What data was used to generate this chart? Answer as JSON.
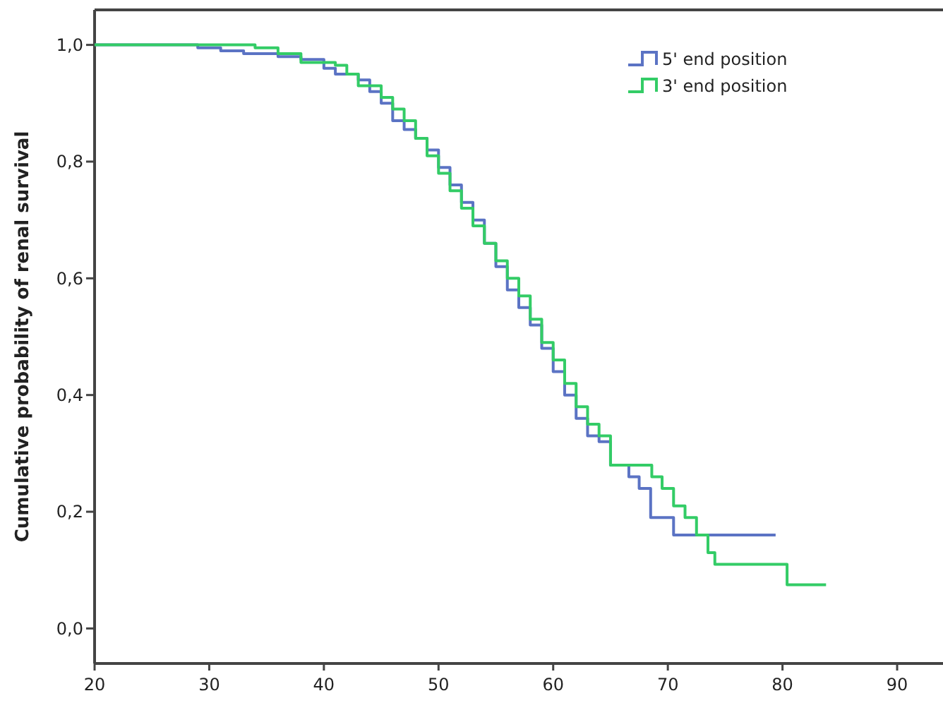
{
  "chart_data": {
    "type": "step",
    "ylabel": "Cumulative probability of renal survival",
    "xlim": [
      20,
      94
    ],
    "xticks": [
      20,
      30,
      40,
      50,
      60,
      70,
      80,
      90
    ],
    "ylim": [
      -0.06,
      1.06
    ],
    "yticks": [
      {
        "value": 0,
        "label": "0,0"
      },
      {
        "value": 0.2,
        "label": "0,2"
      },
      {
        "value": 0.4,
        "label": "0,4"
      },
      {
        "value": 0.6,
        "label": "0,6"
      },
      {
        "value": 0.8,
        "label": "0,8"
      },
      {
        "value": 1,
        "label": "1,0"
      }
    ],
    "grid": false,
    "legend": "top right",
    "marker": "none",
    "line_style": "solid",
    "series": [
      {
        "name": "5' end position",
        "color": "#5b73c4",
        "x": [
          20,
          29,
          31,
          33,
          36,
          38,
          40,
          41,
          43,
          44,
          45,
          46,
          47,
          48,
          49,
          50,
          51,
          52,
          53,
          54,
          55,
          56,
          57,
          58,
          59,
          60,
          61,
          62,
          63,
          64,
          65,
          66.6,
          67.5,
          68.5,
          70.5,
          79.4
        ],
        "values": [
          1,
          0.995,
          0.99,
          0.985,
          0.98,
          0.975,
          0.96,
          0.95,
          0.94,
          0.92,
          0.9,
          0.87,
          0.855,
          0.84,
          0.82,
          0.79,
          0.76,
          0.73,
          0.7,
          0.66,
          0.62,
          0.58,
          0.55,
          0.52,
          0.48,
          0.44,
          0.4,
          0.36,
          0.33,
          0.32,
          0.28,
          0.26,
          0.24,
          0.19,
          0.16,
          0.16
        ]
      },
      {
        "name": "3' end position",
        "color": "#33cc66",
        "x": [
          20,
          34,
          36,
          38,
          41,
          42,
          43,
          45,
          46,
          47,
          48,
          49,
          50,
          51,
          52,
          53,
          54,
          55,
          56,
          57,
          58,
          59,
          60,
          61,
          62,
          63,
          64,
          65,
          68.6,
          69.5,
          70.5,
          71.5,
          72.5,
          73.5,
          74.1,
          75.1,
          80.4,
          83.8
        ],
        "values": [
          1,
          0.995,
          0.985,
          0.97,
          0.965,
          0.95,
          0.93,
          0.91,
          0.89,
          0.87,
          0.84,
          0.81,
          0.78,
          0.75,
          0.72,
          0.69,
          0.66,
          0.63,
          0.6,
          0.57,
          0.53,
          0.49,
          0.46,
          0.42,
          0.38,
          0.35,
          0.33,
          0.28,
          0.26,
          0.24,
          0.21,
          0.19,
          0.16,
          0.13,
          0.11,
          0.11,
          0.075,
          0.075
        ]
      }
    ]
  }
}
